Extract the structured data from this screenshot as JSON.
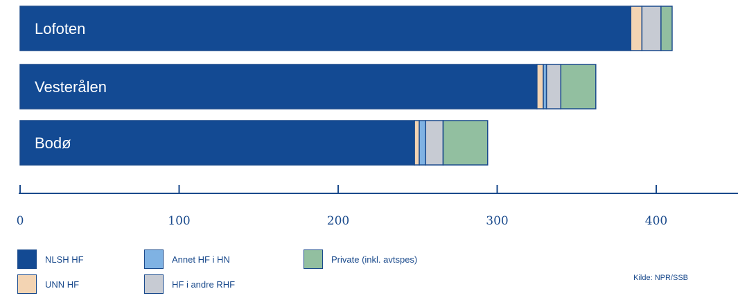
{
  "chart_data": {
    "type": "bar",
    "orientation": "horizontal",
    "stacked": true,
    "categories": [
      "Lofoten",
      "Vesterålen",
      "Bodø"
    ],
    "series": [
      {
        "name": "NLSH HF",
        "color": "#134a93",
        "values": [
          384,
          325,
          248
        ]
      },
      {
        "name": "UNN HF",
        "color": "#f3d4b3",
        "values": [
          7,
          4,
          3
        ]
      },
      {
        "name": "Annet HF i HN",
        "color": "#7fb2e3",
        "values": [
          0,
          2,
          4
        ]
      },
      {
        "name": "HF i andre RHF",
        "color": "#c7cbd3",
        "values": [
          12,
          9,
          11
        ]
      },
      {
        "name": "Private  (inkl. avtspes)",
        "color": "#92bfa0",
        "values": [
          7,
          22,
          28
        ]
      }
    ],
    "x_ticks": [
      0,
      100,
      200,
      300,
      400
    ],
    "x_tick_labels": [
      "0",
      "100",
      "200",
      "300",
      "400"
    ],
    "xlim": [
      0,
      455
    ],
    "grid": false,
    "legend_position": "bottom-left"
  },
  "legend": {
    "items": [
      {
        "label": "NLSH HF",
        "color": "#134a93"
      },
      {
        "label": "UNN HF",
        "color": "#f3d4b3"
      },
      {
        "label": "Annet HF i HN",
        "color": "#7fb2e3"
      },
      {
        "label": "HF i andre RHF",
        "color": "#c7cbd3"
      },
      {
        "label": "Private  (inkl. avtspes)",
        "color": "#92bfa0"
      }
    ]
  },
  "source": "Kilde: NPR/SSB",
  "colors": {
    "axis": "#1a4a8c",
    "bar_outline": "#1a4a8c",
    "category_text": "#ffffff"
  }
}
